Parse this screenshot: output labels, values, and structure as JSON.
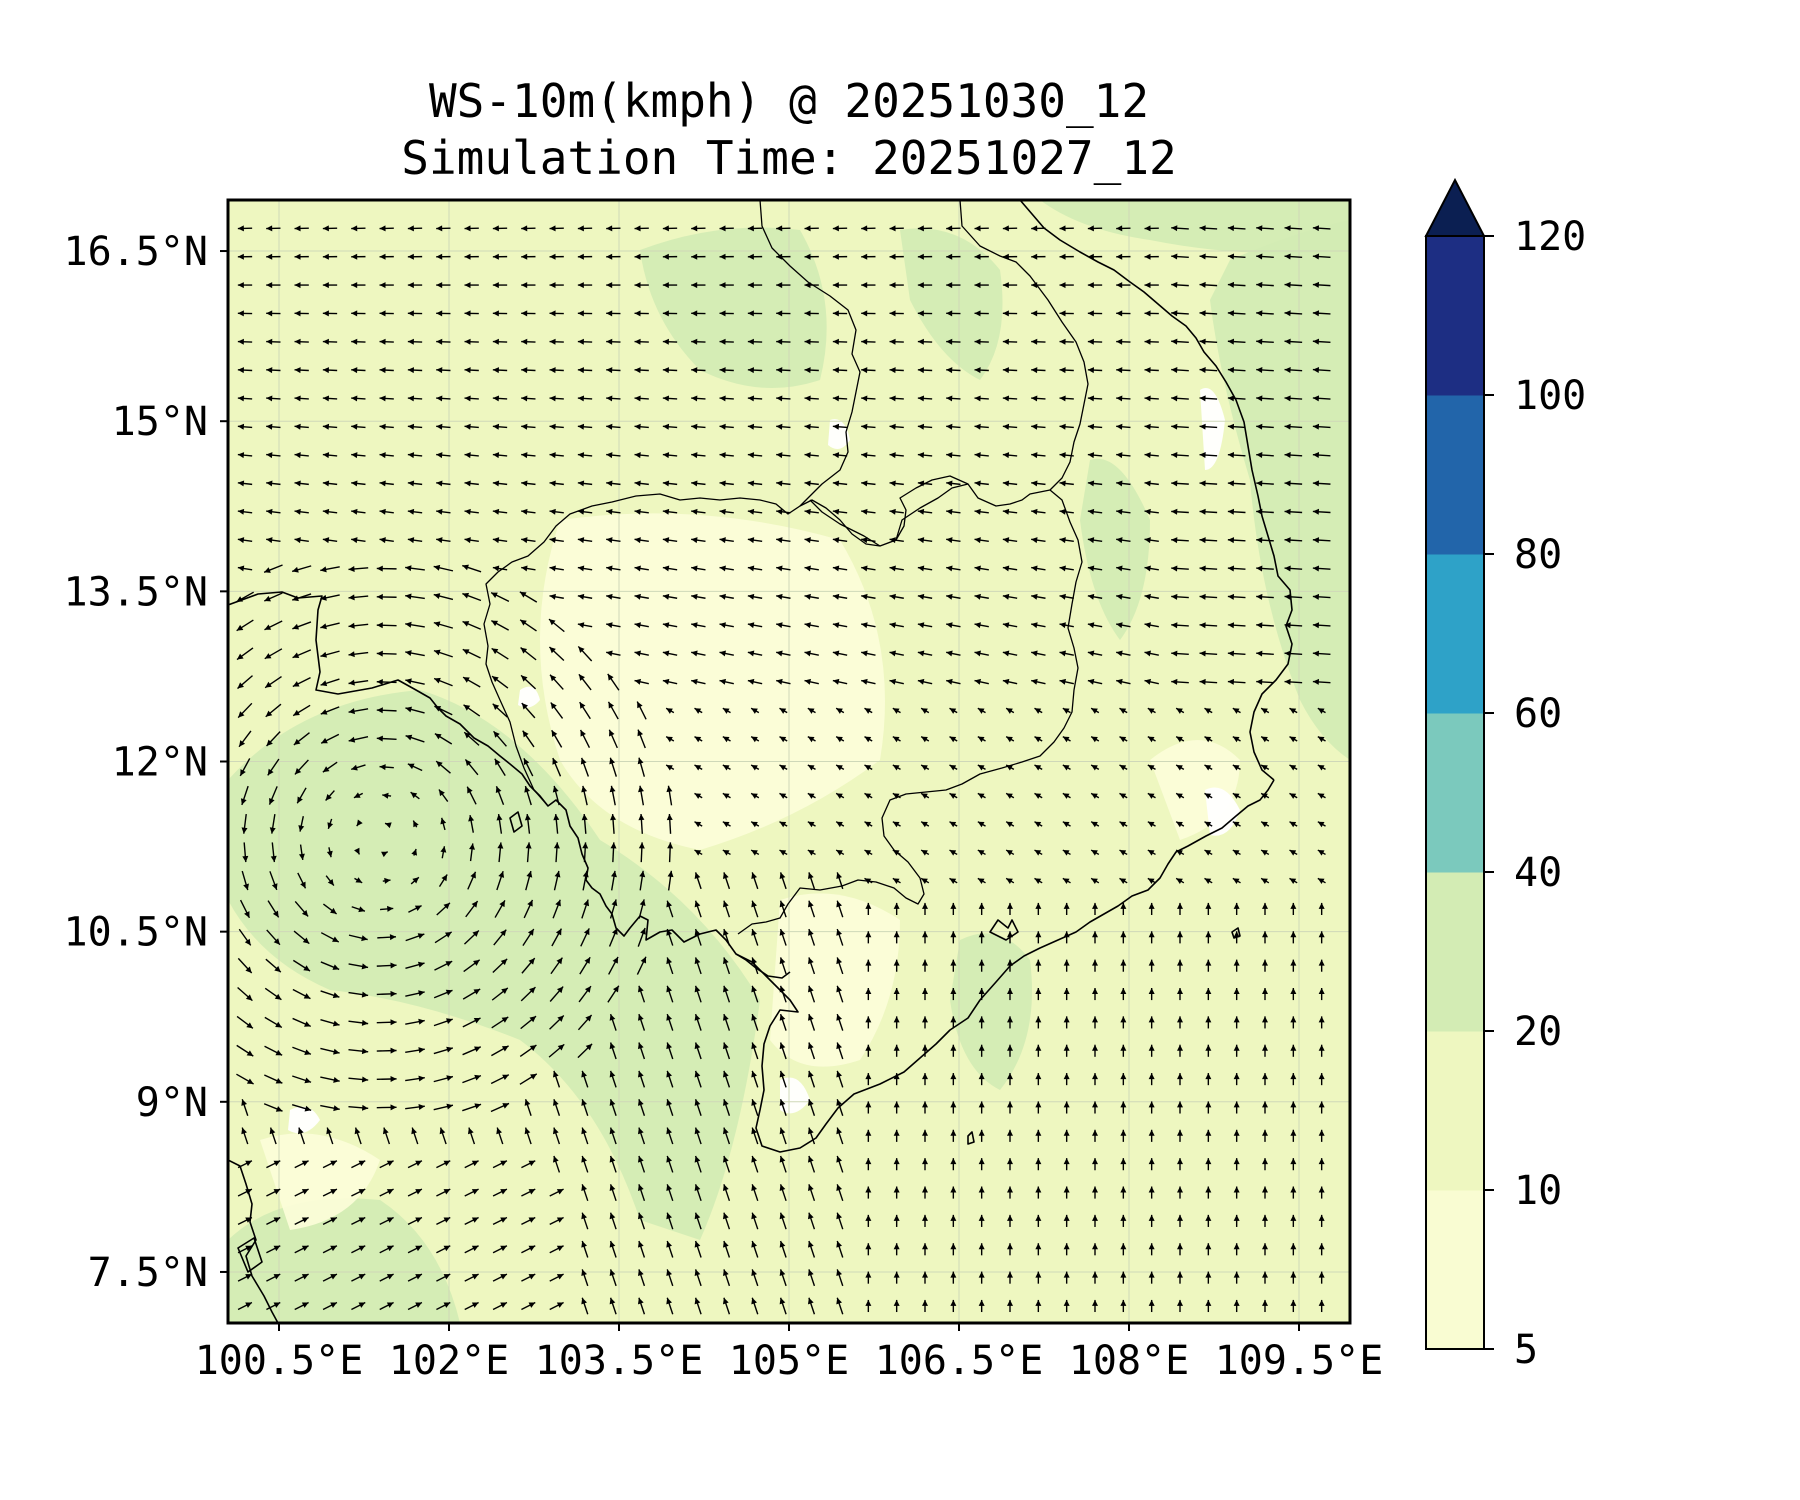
{
  "title": {
    "line1": "WS-10m(kmph) @ 20251030_12",
    "line2": "Simulation Time: 20251027_12"
  },
  "map": {
    "lon_range": [
      100.05,
      109.95
    ],
    "lat_range": [
      7.05,
      16.95
    ],
    "x_ticks": [
      {
        "value": 100.5,
        "label": "100.5°E"
      },
      {
        "value": 102.0,
        "label": "102°E"
      },
      {
        "value": 103.5,
        "label": "103.5°E"
      },
      {
        "value": 105.0,
        "label": "105°E"
      },
      {
        "value": 106.5,
        "label": "106.5°E"
      },
      {
        "value": 108.0,
        "label": "108°E"
      },
      {
        "value": 109.5,
        "label": "109.5°E"
      }
    ],
    "y_ticks": [
      {
        "value": 7.5,
        "label": "7.5°N"
      },
      {
        "value": 9.0,
        "label": "9°N"
      },
      {
        "value": 10.5,
        "label": "10.5°N"
      },
      {
        "value": 12.0,
        "label": "12°N"
      },
      {
        "value": 13.5,
        "label": "13.5°N"
      },
      {
        "value": 15.0,
        "label": "15°N"
      },
      {
        "value": 16.5,
        "label": "16.5°N"
      }
    ],
    "gridlines": true,
    "base_fill": "#eef7c0",
    "light_fill": "#fbfdd8",
    "mid_fill": "#d3ecb4",
    "calm_fill": "#ffffff",
    "coastline_color": "#000000",
    "arrow_color": "#000000",
    "vortex_centres": [
      {
        "lon": 101.4,
        "lat": 11.3
      },
      {
        "lon": 101.5,
        "lat": 7.6
      }
    ]
  },
  "colorbar": {
    "levels": [
      5,
      10,
      20,
      40,
      60,
      80,
      100,
      120
    ],
    "labels": [
      "5",
      "10",
      "20",
      "40",
      "60",
      "80",
      "100",
      "120"
    ],
    "colors": [
      "#f9fcd2",
      "#eef7c0",
      "#d3ecb4",
      "#7bc9bd",
      "#2ea2c8",
      "#2265aa",
      "#1d2e83",
      "#0b1f52"
    ],
    "extend": "max"
  }
}
